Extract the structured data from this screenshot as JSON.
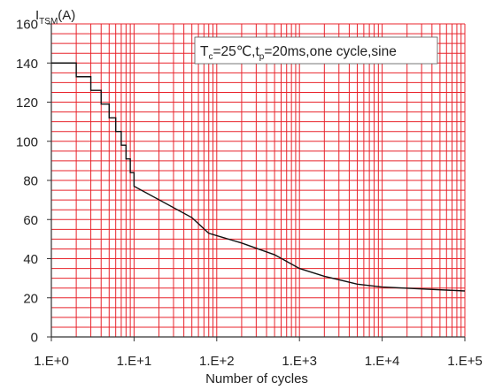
{
  "chart_data": {
    "type": "line",
    "title": "",
    "ylabel_main": "I",
    "ylabel_sub": "TSM",
    "ylabel_unit": "(A)",
    "xlabel": "Number of cycles",
    "x_scale": "log",
    "xlim": [
      1,
      100000
    ],
    "ylim": [
      0,
      160
    ],
    "grid": true,
    "grid_color": "#e8242c",
    "line_color": "#111111",
    "x_tick_labels": [
      "1.E+0",
      "1.E+1",
      "1.E+2",
      "1.E+3",
      "1.E+4",
      "1.E+5"
    ],
    "y_tick_labels": [
      "0",
      "20",
      "40",
      "60",
      "80",
      "100",
      "120",
      "140",
      "160"
    ],
    "annotation": {
      "t": "T",
      "c_sub": "c",
      "part1": "=25℃,t",
      "p_sub": "p",
      "part2": "=20ms,one cycle,sine"
    },
    "series": [
      {
        "x": [
          1,
          2,
          2,
          3,
          3,
          4,
          4,
          5,
          5,
          6,
          6,
          7,
          7,
          8,
          8,
          9,
          9,
          10,
          10,
          50,
          80,
          200,
          500,
          1000,
          2000,
          5000,
          10000,
          100000
        ],
        "y": [
          140,
          140,
          133,
          133,
          126,
          126,
          119,
          119,
          112,
          112,
          105,
          105,
          98,
          98,
          91,
          91,
          84,
          84,
          77,
          61,
          53,
          48,
          42,
          35,
          31,
          27,
          25.5,
          23.5
        ]
      }
    ]
  }
}
